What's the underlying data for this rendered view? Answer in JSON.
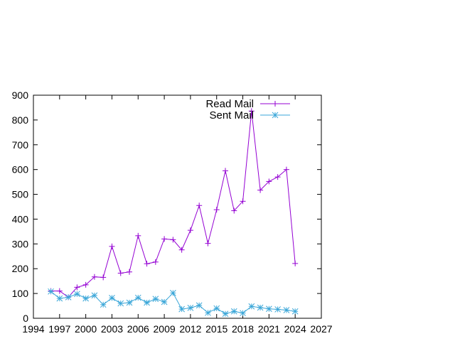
{
  "chart_data": {
    "type": "line",
    "title": "",
    "xlabel": "",
    "ylabel": "",
    "xlim": [
      1994,
      2027
    ],
    "ylim": [
      0,
      900
    ],
    "xticks": [
      1994,
      1997,
      2000,
      2003,
      2006,
      2009,
      2012,
      2015,
      2018,
      2021,
      2024,
      2027
    ],
    "yticks": [
      0,
      100,
      200,
      300,
      400,
      500,
      600,
      700,
      800,
      900
    ],
    "grid": false,
    "legend_position": "top-right",
    "x": [
      1996,
      1997,
      1998,
      1999,
      2000,
      2001,
      2002,
      2003,
      2004,
      2005,
      2006,
      2007,
      2008,
      2009,
      2010,
      2011,
      2012,
      2013,
      2014,
      2015,
      2016,
      2017,
      2018,
      2019,
      2020,
      2021,
      2022,
      2023,
      2024
    ],
    "series": [
      {
        "name": "Read Mail",
        "color": "#9400d3",
        "marker": "plus",
        "values": [
          110,
          110,
          85,
          125,
          135,
          167,
          165,
          290,
          182,
          187,
          333,
          220,
          227,
          320,
          317,
          276,
          355,
          455,
          302,
          438,
          595,
          434,
          472,
          836,
          517,
          552,
          570,
          600,
          221
        ]
      },
      {
        "name": "Sent Mail",
        "color": "#3aa6d8",
        "marker": "star",
        "values": [
          108,
          80,
          85,
          98,
          80,
          92,
          55,
          82,
          60,
          63,
          83,
          63,
          78,
          66,
          102,
          37,
          42,
          52,
          22,
          40,
          18,
          28,
          21,
          48,
          43,
          38,
          36,
          33,
          28
        ]
      }
    ]
  }
}
